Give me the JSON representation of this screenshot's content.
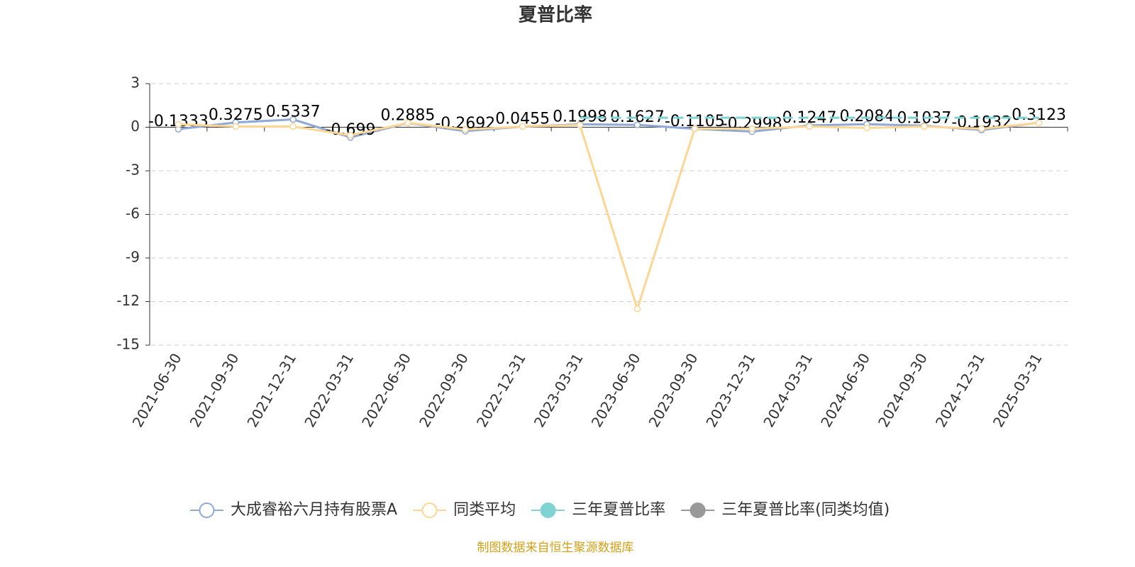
{
  "chart_data": {
    "type": "line",
    "title": "夏普比率",
    "categories": [
      "2021-06-30",
      "2021-09-30",
      "2021-12-31",
      "2022-03-31",
      "2022-06-30",
      "2022-09-30",
      "2022-12-31",
      "2023-03-31",
      "2023-06-30",
      "2023-09-30",
      "2023-12-31",
      "2024-03-31",
      "2024-06-30",
      "2024-09-30",
      "2024-12-31",
      "2025-03-31"
    ],
    "series": [
      {
        "name": "大成睿裕六月持有股票A",
        "color": "#8fa9d6",
        "marker": "hollow",
        "labels": true,
        "values": [
          -0.1333,
          0.3275,
          0.5337,
          -0.699,
          0.2885,
          -0.2692,
          0.0455,
          0.1998,
          0.1627,
          -0.1105,
          -0.2998,
          0.1247,
          0.2084,
          0.1037,
          -0.1932,
          0.3123
        ]
      },
      {
        "name": "同类平均",
        "color": "#fdd693",
        "marker": "hollow",
        "values": [
          0.2,
          0.05,
          0.05,
          -0.55,
          0.3,
          -0.15,
          0.05,
          0.15,
          -12.5,
          -0.1,
          -0.1,
          0.05,
          -0.05,
          0.05,
          -0.1,
          0.3
        ]
      },
      {
        "name": "三年夏普比率",
        "color": "#7fd3d3",
        "marker": "filled",
        "dashed": true,
        "values": [
          null,
          null,
          null,
          null,
          null,
          null,
          null,
          0.65,
          0.65,
          0.65,
          0.65,
          0.65,
          0.65,
          0.65,
          0.65,
          0.65
        ]
      },
      {
        "name": "三年夏普比率(同类均值)",
        "color": "#999999",
        "marker": "filled",
        "dashed": true,
        "values": [
          null,
          null,
          null,
          null,
          null,
          null,
          null,
          null,
          null,
          null,
          null,
          null,
          null,
          null,
          null,
          null
        ]
      }
    ],
    "ylim": [
      -15,
      3
    ],
    "yticks": [
      -15,
      -12,
      -9,
      -6,
      -3,
      0,
      3
    ],
    "grid": true,
    "legend": "bottom",
    "source": "制图数据来自恒生聚源数据库"
  }
}
